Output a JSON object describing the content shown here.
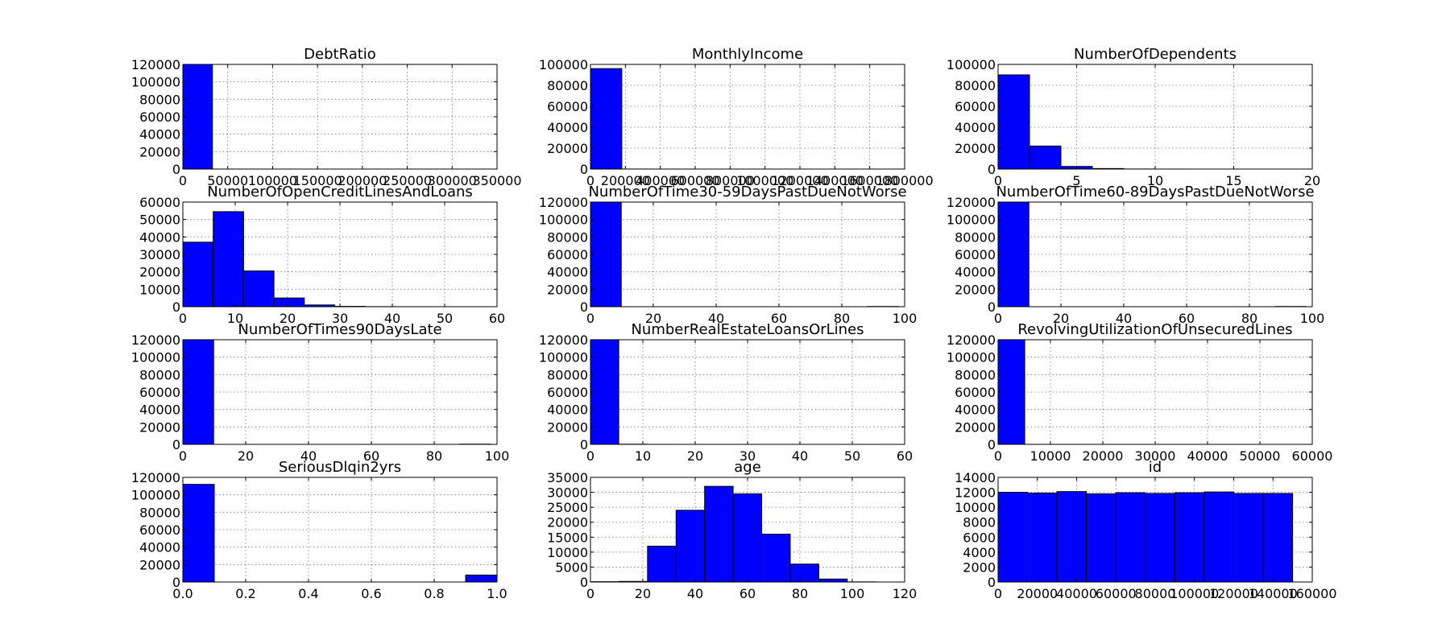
{
  "bar_color": "#0000ff",
  "chart_data": [
    {
      "type": "bar",
      "title": "DebtRatio",
      "bins": [
        [
          0,
          32967,
          120000
        ],
        [
          32967,
          65934,
          18
        ],
        [
          65934,
          98901,
          10
        ],
        [
          98901,
          131868,
          5
        ],
        [
          131868,
          164835,
          4
        ],
        [
          164835,
          197802,
          3
        ],
        [
          197802,
          230769,
          2
        ],
        [
          230769,
          263736,
          2
        ],
        [
          263736,
          296703,
          1
        ],
        [
          296703,
          329670,
          1
        ]
      ],
      "xlim": [
        0,
        350000
      ],
      "ylim": [
        0,
        120000
      ],
      "xticks": [
        0,
        50000,
        100000,
        150000,
        200000,
        250000,
        300000,
        350000
      ],
      "yticks": [
        0,
        20000,
        40000,
        60000,
        80000,
        100000,
        120000
      ],
      "grid": true
    },
    {
      "type": "bar",
      "title": "MonthlyIncome",
      "bins": [
        [
          0,
          179468,
          96000
        ],
        [
          179468,
          358936,
          30
        ],
        [
          358936,
          538404,
          8
        ],
        [
          538404,
          717872,
          4
        ],
        [
          717872,
          897340,
          2
        ],
        [
          897340,
          1076808,
          2
        ],
        [
          1076808,
          1256276,
          1
        ],
        [
          1256276,
          1435744,
          1
        ],
        [
          1435744,
          1615212,
          1
        ],
        [
          1615212,
          1794680,
          1
        ]
      ],
      "xlim": [
        0,
        1800000
      ],
      "ylim": [
        0,
        100000
      ],
      "xticks": [
        0,
        200000,
        400000,
        600000,
        800000,
        1000000,
        1200000,
        1400000,
        1600000,
        1800000
      ],
      "yticks": [
        0,
        20000,
        40000,
        60000,
        80000,
        100000
      ],
      "grid": true
    },
    {
      "type": "bar",
      "title": "NumberOfDependents",
      "bins": [
        [
          0,
          2,
          90000
        ],
        [
          2,
          4,
          22000
        ],
        [
          4,
          6,
          2500
        ],
        [
          6,
          8,
          500
        ],
        [
          8,
          10,
          60
        ],
        [
          10,
          12,
          10
        ],
        [
          12,
          14,
          3
        ],
        [
          14,
          16,
          2
        ],
        [
          16,
          18,
          1
        ],
        [
          18,
          20,
          1
        ]
      ],
      "xlim": [
        0,
        20
      ],
      "ylim": [
        0,
        100000
      ],
      "xticks": [
        0,
        5,
        10,
        15,
        20
      ],
      "yticks": [
        0,
        20000,
        40000,
        60000,
        80000,
        100000
      ],
      "grid": true
    },
    {
      "type": "bar",
      "title": "NumberOfOpenCreditLinesAndLoans",
      "bins": [
        [
          0,
          5.8,
          37000
        ],
        [
          5.8,
          11.6,
          54500
        ],
        [
          11.6,
          17.4,
          20500
        ],
        [
          17.4,
          23.2,
          5000
        ],
        [
          23.2,
          29,
          1000
        ],
        [
          29,
          34.8,
          200
        ],
        [
          34.8,
          40.6,
          50
        ],
        [
          40.6,
          46.4,
          15
        ],
        [
          46.4,
          52.2,
          5
        ],
        [
          52.2,
          58,
          2
        ]
      ],
      "xlim": [
        0,
        60
      ],
      "ylim": [
        0,
        60000
      ],
      "xticks": [
        0,
        10,
        20,
        30,
        40,
        50,
        60
      ],
      "yticks": [
        0,
        10000,
        20000,
        30000,
        40000,
        50000,
        60000
      ],
      "grid": true
    },
    {
      "type": "bar",
      "title": "NumberOfTime30-59DaysPastDueNotWorse",
      "bins": [
        [
          0,
          9.8,
          120000
        ],
        [
          9.8,
          19.6,
          0
        ],
        [
          19.6,
          29.4,
          0
        ],
        [
          29.4,
          39.2,
          0
        ],
        [
          39.2,
          49,
          0
        ],
        [
          49,
          58.8,
          0
        ],
        [
          58.8,
          68.6,
          0
        ],
        [
          68.6,
          78.4,
          0
        ],
        [
          78.4,
          88.2,
          0
        ],
        [
          88.2,
          98,
          250
        ]
      ],
      "xlim": [
        0,
        100
      ],
      "ylim": [
        0,
        120000
      ],
      "xticks": [
        0,
        20,
        40,
        60,
        80,
        100
      ],
      "yticks": [
        0,
        20000,
        40000,
        60000,
        80000,
        100000,
        120000
      ],
      "grid": true
    },
    {
      "type": "bar",
      "title": "NumberOfTime60-89DaysPastDueNotWorse",
      "bins": [
        [
          0,
          9.8,
          120000
        ],
        [
          9.8,
          19.6,
          0
        ],
        [
          19.6,
          29.4,
          0
        ],
        [
          29.4,
          39.2,
          0
        ],
        [
          39.2,
          49,
          0
        ],
        [
          49,
          58.8,
          0
        ],
        [
          58.8,
          68.6,
          0
        ],
        [
          68.6,
          78.4,
          0
        ],
        [
          78.4,
          88.2,
          0
        ],
        [
          88.2,
          98,
          250
        ]
      ],
      "xlim": [
        0,
        100
      ],
      "ylim": [
        0,
        120000
      ],
      "xticks": [
        0,
        20,
        40,
        60,
        80,
        100
      ],
      "yticks": [
        0,
        20000,
        40000,
        60000,
        80000,
        100000,
        120000
      ],
      "grid": true
    },
    {
      "type": "bar",
      "title": "NumberOfTimes90DaysLate",
      "bins": [
        [
          0,
          9.8,
          120000
        ],
        [
          9.8,
          19.6,
          0
        ],
        [
          19.6,
          29.4,
          0
        ],
        [
          29.4,
          39.2,
          0
        ],
        [
          39.2,
          49,
          0
        ],
        [
          49,
          58.8,
          0
        ],
        [
          58.8,
          68.6,
          0
        ],
        [
          68.6,
          78.4,
          0
        ],
        [
          78.4,
          88.2,
          0
        ],
        [
          88.2,
          98,
          250
        ]
      ],
      "xlim": [
        0,
        100
      ],
      "ylim": [
        0,
        120000
      ],
      "xticks": [
        0,
        20,
        40,
        60,
        80,
        100
      ],
      "yticks": [
        0,
        20000,
        40000,
        60000,
        80000,
        100000,
        120000
      ],
      "grid": true
    },
    {
      "type": "bar",
      "title": "NumberRealEstateLoansOrLines",
      "bins": [
        [
          0,
          5.4,
          120000
        ],
        [
          5.4,
          10.8,
          200
        ],
        [
          10.8,
          16.2,
          20
        ],
        [
          16.2,
          21.6,
          5
        ],
        [
          21.6,
          27,
          2
        ],
        [
          27,
          32.4,
          1
        ],
        [
          32.4,
          37.8,
          0
        ],
        [
          37.8,
          43.2,
          0
        ],
        [
          43.2,
          48.6,
          0
        ],
        [
          48.6,
          54,
          1
        ]
      ],
      "xlim": [
        0,
        60
      ],
      "ylim": [
        0,
        120000
      ],
      "xticks": [
        0,
        10,
        20,
        30,
        40,
        50,
        60
      ],
      "yticks": [
        0,
        20000,
        40000,
        60000,
        80000,
        100000,
        120000
      ],
      "grid": true
    },
    {
      "type": "bar",
      "title": "RevolvingUtilizationOfUnsecuredLines",
      "bins": [
        [
          0,
          5090,
          120000
        ],
        [
          5090,
          10180,
          40
        ],
        [
          10180,
          15270,
          15
        ],
        [
          15270,
          20360,
          8
        ],
        [
          20360,
          25450,
          5
        ],
        [
          25450,
          30540,
          3
        ],
        [
          30540,
          35630,
          2
        ],
        [
          35630,
          40720,
          1
        ],
        [
          40720,
          45810,
          1
        ],
        [
          45810,
          50900,
          1
        ]
      ],
      "xlim": [
        0,
        60000
      ],
      "ylim": [
        0,
        120000
      ],
      "xticks": [
        0,
        10000,
        20000,
        30000,
        40000,
        50000,
        60000
      ],
      "yticks": [
        0,
        20000,
        40000,
        60000,
        80000,
        100000,
        120000
      ],
      "grid": true
    },
    {
      "type": "bar",
      "title": "SeriousDlqin2yrs",
      "bins": [
        [
          0,
          0.1,
          112000
        ],
        [
          0.1,
          0.2,
          0
        ],
        [
          0.2,
          0.3,
          0
        ],
        [
          0.3,
          0.4,
          0
        ],
        [
          0.4,
          0.5,
          0
        ],
        [
          0.5,
          0.6,
          0
        ],
        [
          0.6,
          0.7,
          0
        ],
        [
          0.7,
          0.8,
          0
        ],
        [
          0.8,
          0.9,
          0
        ],
        [
          0.9,
          1.0,
          8000
        ]
      ],
      "xlim": [
        0,
        1.0
      ],
      "ylim": [
        0,
        120000
      ],
      "xticks": [
        0.0,
        0.2,
        0.4,
        0.6,
        0.8,
        1.0
      ],
      "yticks": [
        0,
        20000,
        40000,
        60000,
        80000,
        100000,
        120000
      ],
      "grid": true,
      "xdecimals": 1
    },
    {
      "type": "bar",
      "title": "age",
      "bins": [
        [
          0,
          10.9,
          100
        ],
        [
          10.9,
          21.8,
          200
        ],
        [
          21.8,
          32.7,
          12000
        ],
        [
          32.7,
          43.6,
          24000
        ],
        [
          43.6,
          54.5,
          32000
        ],
        [
          54.5,
          65.4,
          29500
        ],
        [
          65.4,
          76.3,
          16000
        ],
        [
          76.3,
          87.2,
          6000
        ],
        [
          87.2,
          98.1,
          1000
        ],
        [
          98.1,
          109,
          50
        ]
      ],
      "xlim": [
        0,
        120
      ],
      "ylim": [
        0,
        35000
      ],
      "xticks": [
        0,
        20,
        40,
        60,
        80,
        100,
        120
      ],
      "yticks": [
        0,
        5000,
        10000,
        15000,
        20000,
        25000,
        30000,
        35000
      ],
      "grid": true
    },
    {
      "type": "bar",
      "title": "id",
      "bins": [
        [
          0,
          15000,
          12000
        ],
        [
          15000,
          30000,
          11900
        ],
        [
          30000,
          45000,
          12100
        ],
        [
          45000,
          60000,
          11800
        ],
        [
          60000,
          75000,
          11950
        ],
        [
          75000,
          90000,
          11850
        ],
        [
          90000,
          105000,
          11950
        ],
        [
          105000,
          120000,
          12050
        ],
        [
          120000,
          135000,
          11850
        ],
        [
          135000,
          150000,
          11850
        ]
      ],
      "xlim": [
        0,
        160000
      ],
      "ylim": [
        0,
        14000
      ],
      "xticks": [
        0,
        20000,
        40000,
        60000,
        80000,
        100000,
        120000,
        140000,
        160000
      ],
      "yticks": [
        0,
        2000,
        4000,
        6000,
        8000,
        10000,
        12000,
        14000
      ],
      "grid": true
    }
  ]
}
